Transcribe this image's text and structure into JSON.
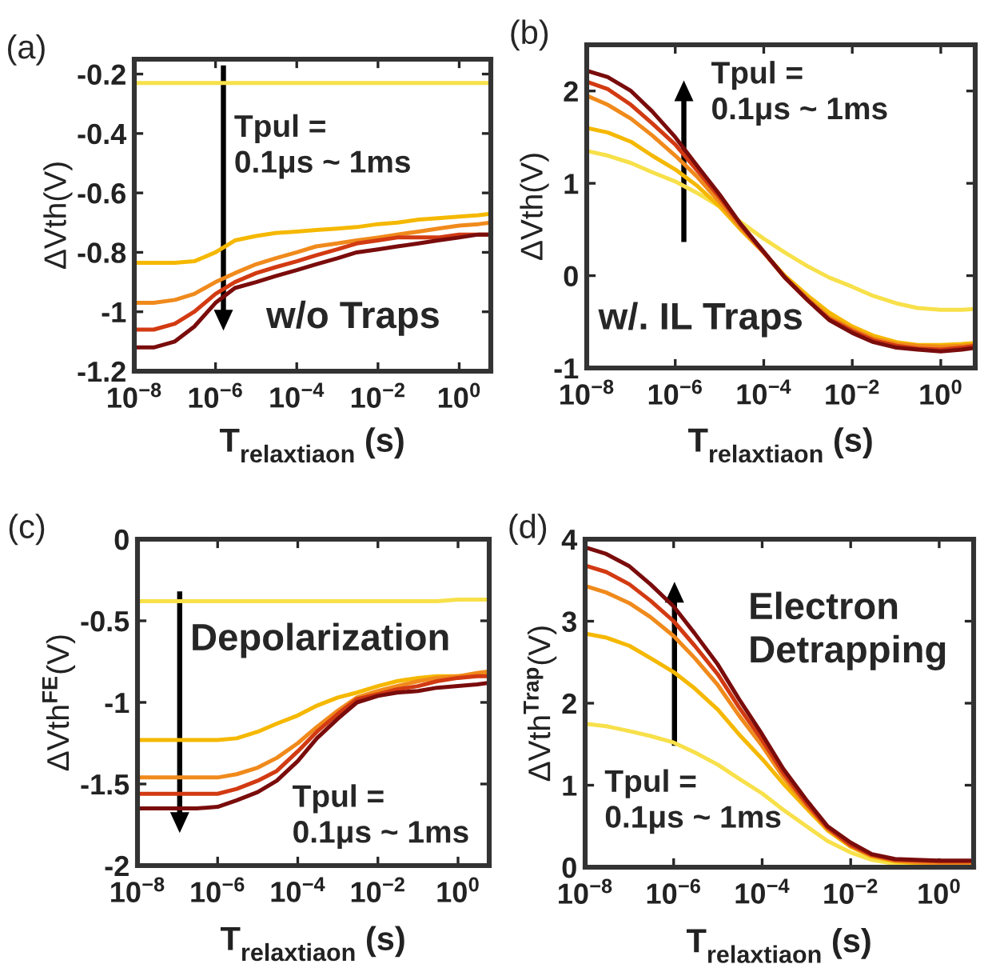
{
  "chart_data": [
    {
      "type": "line",
      "title": "(a)",
      "xlabel": "T$_{relaxtiaon}$ (s)",
      "ylabel": "ΔVth(V)",
      "log": "x",
      "xlim": [
        1e-08,
        6
      ],
      "ylim": [
        -1.2,
        -0.15
      ],
      "xticks": [
        {
          "value": 1e-08,
          "label": "10$^{−8}$"
        },
        {
          "value": 1e-06,
          "label": "10$^{−6}$"
        },
        {
          "value": 0.0001,
          "label": "10$^{−4}$"
        },
        {
          "value": 0.01,
          "label": "10$^{−2}$"
        },
        {
          "value": 1,
          "label": "10$^{0}$"
        }
      ],
      "yticks": [
        -1.2,
        -1,
        -0.8,
        -0.6,
        -0.4,
        -0.2
      ],
      "grid": false,
      "annotations": [
        "Tpul =\n0.1μs ~ 1ms",
        "w/o Traps"
      ],
      "x": [
        1e-08,
        3e-08,
        1e-07,
        3e-07,
        1e-06,
        3e-06,
        1e-05,
        3e-05,
        0.0001,
        0.0003,
        0.001,
        0.003,
        0.01,
        0.03,
        0.1,
        0.3,
        1,
        3,
        6
      ],
      "series": [
        {
          "color": "#f7e04a",
          "values": [
            -0.23,
            -0.23,
            -0.23,
            -0.23,
            -0.23,
            -0.23,
            -0.23,
            -0.23,
            -0.23,
            -0.23,
            -0.23,
            -0.23,
            -0.23,
            -0.23,
            -0.23,
            -0.23,
            -0.23,
            -0.23,
            -0.23
          ]
        },
        {
          "color": "#f5b800",
          "values": [
            -0.835,
            -0.835,
            -0.835,
            -0.83,
            -0.8,
            -0.76,
            -0.745,
            -0.735,
            -0.73,
            -0.725,
            -0.72,
            -0.715,
            -0.705,
            -0.7,
            -0.69,
            -0.685,
            -0.68,
            -0.675,
            -0.67
          ]
        },
        {
          "color": "#f08a1c",
          "values": [
            -0.97,
            -0.97,
            -0.96,
            -0.94,
            -0.9,
            -0.87,
            -0.84,
            -0.82,
            -0.8,
            -0.78,
            -0.77,
            -0.76,
            -0.75,
            -0.74,
            -0.73,
            -0.72,
            -0.71,
            -0.705,
            -0.7
          ]
        },
        {
          "color": "#d23a12",
          "values": [
            -1.06,
            -1.06,
            -1.04,
            -1.0,
            -0.94,
            -0.9,
            -0.87,
            -0.85,
            -0.83,
            -0.81,
            -0.79,
            -0.77,
            -0.76,
            -0.75,
            -0.75,
            -0.75,
            -0.74,
            -0.74,
            -0.74
          ]
        },
        {
          "color": "#7a0c0c",
          "values": [
            -1.12,
            -1.12,
            -1.1,
            -1.05,
            -0.97,
            -0.92,
            -0.9,
            -0.88,
            -0.86,
            -0.84,
            -0.82,
            -0.8,
            -0.79,
            -0.78,
            -0.77,
            -0.76,
            -0.75,
            -0.74,
            -0.74
          ]
        }
      ]
    },
    {
      "type": "line",
      "title": "(b)",
      "xlabel": "T$_{relaxtiaon}$ (s)",
      "ylabel": "ΔVth(V)",
      "log": "x",
      "xlim": [
        1e-08,
        6
      ],
      "ylim": [
        -1,
        2.5
      ],
      "xticks": [
        {
          "value": 1e-08,
          "label": "10$^{−8}$"
        },
        {
          "value": 1e-06,
          "label": "10$^{−6}$"
        },
        {
          "value": 0.0001,
          "label": "10$^{−4}$"
        },
        {
          "value": 0.01,
          "label": "10$^{−2}$"
        },
        {
          "value": 1,
          "label": "10$^{0}$"
        }
      ],
      "yticks": [
        -1,
        0,
        1,
        2
      ],
      "grid": false,
      "annotations": [
        "Tpul =\n0.1μs ~ 1ms",
        "w/. IL Traps"
      ],
      "x": [
        1e-08,
        3e-08,
        1e-07,
        3e-07,
        1e-06,
        3e-06,
        1e-05,
        3e-05,
        0.0001,
        0.0003,
        0.001,
        0.003,
        0.01,
        0.03,
        0.1,
        0.3,
        1,
        3,
        6
      ],
      "series": [
        {
          "color": "#f7e04a",
          "values": [
            1.35,
            1.3,
            1.22,
            1.12,
            1.02,
            0.9,
            0.75,
            0.58,
            0.4,
            0.25,
            0.1,
            -0.02,
            -0.12,
            -0.22,
            -0.3,
            -0.35,
            -0.37,
            -0.37,
            -0.36
          ]
        },
        {
          "color": "#f5b800",
          "values": [
            1.6,
            1.55,
            1.45,
            1.3,
            1.15,
            0.98,
            0.75,
            0.5,
            0.25,
            0.0,
            -0.22,
            -0.4,
            -0.55,
            -0.65,
            -0.72,
            -0.75,
            -0.75,
            -0.74,
            -0.73
          ]
        },
        {
          "color": "#f08a1c",
          "values": [
            1.95,
            1.85,
            1.7,
            1.52,
            1.3,
            1.08,
            0.8,
            0.52,
            0.25,
            -0.02,
            -0.25,
            -0.45,
            -0.58,
            -0.68,
            -0.74,
            -0.76,
            -0.77,
            -0.76,
            -0.75
          ]
        },
        {
          "color": "#d23a12",
          "values": [
            2.1,
            2.02,
            1.85,
            1.65,
            1.42,
            1.15,
            0.85,
            0.55,
            0.25,
            -0.02,
            -0.27,
            -0.47,
            -0.6,
            -0.7,
            -0.76,
            -0.79,
            -0.8,
            -0.78,
            -0.76
          ]
        },
        {
          "color": "#7a0c0c",
          "values": [
            2.22,
            2.15,
            2.0,
            1.78,
            1.5,
            1.2,
            0.88,
            0.56,
            0.26,
            -0.02,
            -0.27,
            -0.48,
            -0.62,
            -0.72,
            -0.78,
            -0.8,
            -0.82,
            -0.8,
            -0.78
          ]
        }
      ]
    },
    {
      "type": "line",
      "title": "(c)",
      "xlabel": "T$_{relaxtiaon}$ (s)",
      "ylabel": "ΔVth$^{FE}$(V)",
      "log": "x",
      "xlim": [
        1e-08,
        6
      ],
      "ylim": [
        -2,
        0
      ],
      "xticks": [
        {
          "value": 1e-08,
          "label": "10$^{−8}$"
        },
        {
          "value": 1e-06,
          "label": "10$^{−6}$"
        },
        {
          "value": 0.0001,
          "label": "10$^{−4}$"
        },
        {
          "value": 0.01,
          "label": "10$^{−2}$"
        },
        {
          "value": 1,
          "label": "10$^{0}$"
        }
      ],
      "yticks": [
        -2,
        -1.5,
        -1,
        -0.5,
        0
      ],
      "grid": false,
      "annotations": [
        "Depolarization",
        "Tpul =\n0.1μs ~ 1ms"
      ],
      "x": [
        1e-08,
        3e-08,
        1e-07,
        3e-07,
        1e-06,
        3e-06,
        1e-05,
        3e-05,
        0.0001,
        0.0003,
        0.001,
        0.003,
        0.01,
        0.03,
        0.1,
        0.3,
        1,
        3,
        6
      ],
      "series": [
        {
          "color": "#f7e04a",
          "values": [
            -0.38,
            -0.38,
            -0.38,
            -0.38,
            -0.38,
            -0.38,
            -0.38,
            -0.38,
            -0.38,
            -0.38,
            -0.38,
            -0.38,
            -0.38,
            -0.38,
            -0.38,
            -0.38,
            -0.37,
            -0.37,
            -0.37
          ]
        },
        {
          "color": "#f5b800",
          "values": [
            -1.23,
            -1.23,
            -1.23,
            -1.23,
            -1.23,
            -1.22,
            -1.18,
            -1.13,
            -1.08,
            -1.02,
            -0.97,
            -0.94,
            -0.9,
            -0.87,
            -0.85,
            -0.84,
            -0.84,
            -0.83,
            -0.82
          ]
        },
        {
          "color": "#f08a1c",
          "values": [
            -1.46,
            -1.46,
            -1.46,
            -1.46,
            -1.46,
            -1.44,
            -1.4,
            -1.34,
            -1.25,
            -1.15,
            -1.05,
            -0.97,
            -0.93,
            -0.9,
            -0.87,
            -0.85,
            -0.84,
            -0.82,
            -0.81
          ]
        },
        {
          "color": "#d23a12",
          "values": [
            -1.56,
            -1.56,
            -1.56,
            -1.56,
            -1.56,
            -1.53,
            -1.48,
            -1.42,
            -1.3,
            -1.18,
            -1.07,
            -0.98,
            -0.95,
            -0.92,
            -0.9,
            -0.87,
            -0.85,
            -0.84,
            -0.84
          ]
        },
        {
          "color": "#7a0c0c",
          "values": [
            -1.65,
            -1.65,
            -1.65,
            -1.65,
            -1.64,
            -1.6,
            -1.55,
            -1.48,
            -1.36,
            -1.22,
            -1.1,
            -1.0,
            -0.96,
            -0.94,
            -0.93,
            -0.91,
            -0.9,
            -0.89,
            -0.88
          ]
        }
      ]
    },
    {
      "type": "line",
      "title": "(d)",
      "xlabel": "T$_{relaxtiaon}$ (s)",
      "ylabel": "ΔVth$^{Trap}$(V)",
      "log": "x",
      "xlim": [
        1e-08,
        6
      ],
      "ylim": [
        0,
        4
      ],
      "xticks": [
        {
          "value": 1e-08,
          "label": "10$^{−8}$"
        },
        {
          "value": 1e-06,
          "label": "10$^{−6}$"
        },
        {
          "value": 0.0001,
          "label": "10$^{−4}$"
        },
        {
          "value": 0.01,
          "label": "10$^{−2}$"
        },
        {
          "value": 1,
          "label": "10$^{0}$"
        }
      ],
      "yticks": [
        0,
        1,
        2,
        3,
        4
      ],
      "grid": false,
      "annotations": [
        "Electron\nDetrapping",
        "Tpul =\n0.1μs ~ 1ms"
      ],
      "x": [
        1e-08,
        3e-08,
        1e-07,
        3e-07,
        1e-06,
        3e-06,
        1e-05,
        3e-05,
        0.0001,
        0.0003,
        0.001,
        0.003,
        0.01,
        0.03,
        0.1,
        0.3,
        1,
        3,
        6
      ],
      "series": [
        {
          "color": "#f7e04a",
          "values": [
            1.75,
            1.72,
            1.66,
            1.6,
            1.52,
            1.4,
            1.25,
            1.08,
            0.9,
            0.7,
            0.5,
            0.32,
            0.18,
            0.09,
            0.04,
            0.02,
            0.01,
            null,
            null
          ]
        },
        {
          "color": "#f5b800",
          "values": [
            2.85,
            2.8,
            2.7,
            2.55,
            2.38,
            2.18,
            1.92,
            1.62,
            1.32,
            1.02,
            0.72,
            0.45,
            0.25,
            0.13,
            0.07,
            0.05,
            0.04,
            0.04,
            0.04
          ]
        },
        {
          "color": "#f08a1c",
          "values": [
            3.43,
            3.35,
            3.22,
            3.05,
            2.82,
            2.55,
            2.22,
            1.85,
            1.48,
            1.1,
            0.75,
            0.47,
            0.26,
            0.14,
            0.08,
            0.06,
            0.05,
            0.05,
            0.05
          ]
        },
        {
          "color": "#d23a12",
          "values": [
            3.68,
            3.6,
            3.45,
            3.25,
            3.0,
            2.7,
            2.35,
            1.95,
            1.55,
            1.15,
            0.78,
            0.48,
            0.27,
            0.15,
            0.09,
            0.08,
            0.07,
            0.07,
            0.07
          ]
        },
        {
          "color": "#7a0c0c",
          "values": [
            3.9,
            3.82,
            3.67,
            3.45,
            3.18,
            2.85,
            2.47,
            2.05,
            1.62,
            1.2,
            0.82,
            0.5,
            0.3,
            0.16,
            0.1,
            0.09,
            0.08,
            0.08,
            0.08
          ]
        }
      ]
    }
  ]
}
